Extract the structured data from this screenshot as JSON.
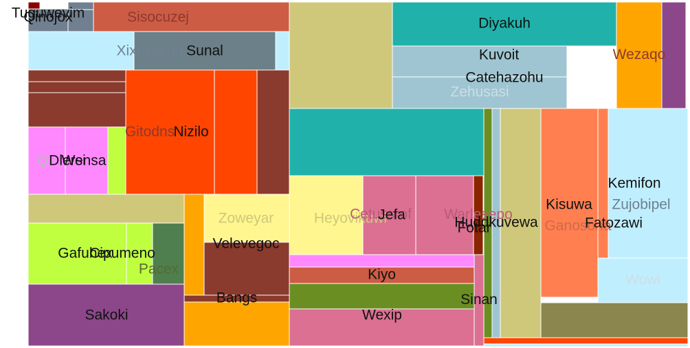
{
  "chart_data": {
    "type": "treemap",
    "title": "",
    "items": [
      {
        "label": "Tuguwevim",
        "value": 0.7,
        "color": "#8B0000",
        "text_color": "#111111"
      },
      {
        "label": "Qinojox",
        "value": 1.3,
        "color": "#708090",
        "text_color": "#111111"
      },
      {
        "label": "",
        "value": 0.8,
        "color": "#708090"
      },
      {
        "label": "",
        "value": 0.6,
        "color": "#708090"
      },
      {
        "label": "Sisocuzej",
        "value": 10.7,
        "color": "#CD5C45",
        "text_color": "#8B3A2E"
      },
      {
        "label": "Xixuzacaa",
        "value": 7.2,
        "color": "#BFEFFF",
        "text_color": "#708090"
      },
      {
        "label": "Sunal",
        "value": 6.8,
        "color": "#6B8088",
        "text_color": "#111111"
      },
      {
        "label": "",
        "value": 1.1,
        "color": "#BFEFFF"
      },
      {
        "label": "",
        "value": 0.9,
        "color": "#8B3A2E"
      },
      {
        "label": "",
        "value": 0.8,
        "color": "#8B3A2E"
      },
      {
        "label": "",
        "value": 3.0,
        "color": "#8B3A2E"
      },
      {
        "label": "Qi",
        "value": 1.0,
        "color": "#FF88FF",
        "text_color": "#BBBBBB"
      },
      {
        "label": "Dlersi",
        "value": 2.5,
        "color": "#FF88FF",
        "text_color": "#111111"
      },
      {
        "label": "Wensa",
        "value": 3.6,
        "color": "#FF88FF",
        "text_color": "#111111"
      },
      {
        "label": "",
        "value": 1.5,
        "color": "#BFFF40"
      },
      {
        "label": "Gitodns",
        "value": 11.9,
        "color": "#FF4500",
        "text_color": "#8B3A2E"
      },
      {
        "label": "Nizilo",
        "value": 7.1,
        "color": "#FF4500",
        "text_color": "#111111"
      },
      {
        "label": "",
        "value": 3.9,
        "color": "#8B3A2E"
      },
      {
        "label": "",
        "value": 10.0,
        "color": "#CFC87A"
      },
      {
        "label": "Gafuhex",
        "value": 6.2,
        "color": "#BFFF40",
        "text_color": "#111111"
      },
      {
        "label": "Cipumeno",
        "value": 4.6,
        "color": "#BFFF40",
        "text_color": "#111111"
      },
      {
        "label": "Pacex",
        "value": 2.9,
        "color": "#4F7F4F",
        "text_color": "#556B2F"
      },
      {
        "label": "Sakoki",
        "value": 14.4,
        "color": "#8B4789",
        "text_color": "#111111"
      },
      {
        "label": "",
        "value": 2.1,
        "color": "#FFA500"
      },
      {
        "label": "Zoweyar",
        "value": 7.2,
        "color": "#FFF68F",
        "text_color": "#CFC87A"
      },
      {
        "label": "Velevegoc",
        "value": 5.9,
        "color": "#8B3A2E",
        "text_color": "#111111"
      },
      {
        "label": "Bangs",
        "value": 2.2,
        "color": "#8B3A2E",
        "text_color": "#111111"
      },
      {
        "label": "",
        "value": 0.6,
        "color": "#FFA500"
      },
      {
        "label": "",
        "value": 6.5,
        "color": "#CFC87A"
      },
      {
        "label": "Diyakuh",
        "value": 14.5,
        "color": "#20B2AA",
        "text_color": "#111111"
      },
      {
        "label": "",
        "value": 9.5,
        "color": "#8B4789"
      },
      {
        "label": "Kuvoit",
        "value": 3.2,
        "color": "#9FC5D2",
        "text_color": "#111111"
      },
      {
        "label": "Catehazohu",
        "value": 4.5,
        "color": "#9FC5D2",
        "text_color": "#111111"
      },
      {
        "label": "Zehusasi",
        "value": 5.0,
        "color": "#9FC5D2",
        "text_color": "#CFDDE4"
      },
      {
        "label": "Wezaqo",
        "value": 5.4,
        "color": "#FFA500",
        "text_color": "#8B3A2E"
      },
      {
        "label": "",
        "value": 6.4,
        "color": "#8B4789"
      },
      {
        "label": "",
        "value": 2.4,
        "color": "#20B2AA"
      },
      {
        "label": "Heyovikuwi",
        "value": 20.2,
        "color": "#FFF68F",
        "text_color": "#CFC87A"
      },
      {
        "label": "Cetussrof",
        "value": 6.8,
        "color": "#DB7093",
        "text_color": "#B85A78"
      },
      {
        "label": "Jefa",
        "value": 1.5,
        "color": "#DB7093",
        "text_color": "#111111"
      },
      {
        "label": "Fotar",
        "value": 2.6,
        "color": "#DB7093",
        "text_color": "#111111"
      },
      {
        "label": "Warlesepo",
        "value": 4.7,
        "color": "#8B2500",
        "text_color": "#B85A78"
      },
      {
        "label": "",
        "value": 0.5,
        "color": "#FF88FF"
      },
      {
        "label": "Kiyo",
        "value": 3.7,
        "color": "#CD5C45",
        "text_color": "#111111"
      },
      {
        "label": "",
        "value": 3.6,
        "color": "#6B8E23"
      },
      {
        "label": "Wexip",
        "value": 5.2,
        "color": "#DB7093",
        "text_color": "#111111"
      },
      {
        "label": "Sinan",
        "value": 7.1,
        "color": "#DB7093",
        "text_color": "#111111"
      },
      {
        "label": "",
        "value": 0.6,
        "color": "#6B8E23"
      },
      {
        "label": "Huddkuvewa",
        "value": 0.8,
        "color": "#9FC5D2",
        "text_color": "#111111"
      },
      {
        "label": "",
        "value": 0.4,
        "color": "#CFC87A"
      },
      {
        "label": "Kisuwa",
        "value": 4.6,
        "color": "#8B4789",
        "text_color": "#111111"
      },
      {
        "label": "Ganosona",
        "value": 3.9,
        "color": "#FF7F50",
        "text_color": "#D06A4A"
      },
      {
        "label": "Fatozawi",
        "value": 4.4,
        "color": "#FF7F50",
        "text_color": "#111111"
      },
      {
        "label": "Kemifon",
        "value": 0.6,
        "color": "#8B864E",
        "text_color": "#111111"
      },
      {
        "label": "Zujobipel",
        "value": 5.1,
        "color": "#BFEFFF",
        "text_color": "#708090"
      },
      {
        "label": "Wowi",
        "value": 3.9,
        "color": "#BFEFFF",
        "text_color": "#CFDDE4"
      },
      {
        "label": "",
        "value": 3.2,
        "color": "#8B864E"
      },
      {
        "label": "",
        "value": 4.6,
        "color": "#FF4500"
      },
      {
        "label": "",
        "value": 1.5,
        "color": "#BFEFFF"
      },
      {
        "label": "",
        "value": 0.4,
        "color": "#CFC87A"
      }
    ]
  }
}
